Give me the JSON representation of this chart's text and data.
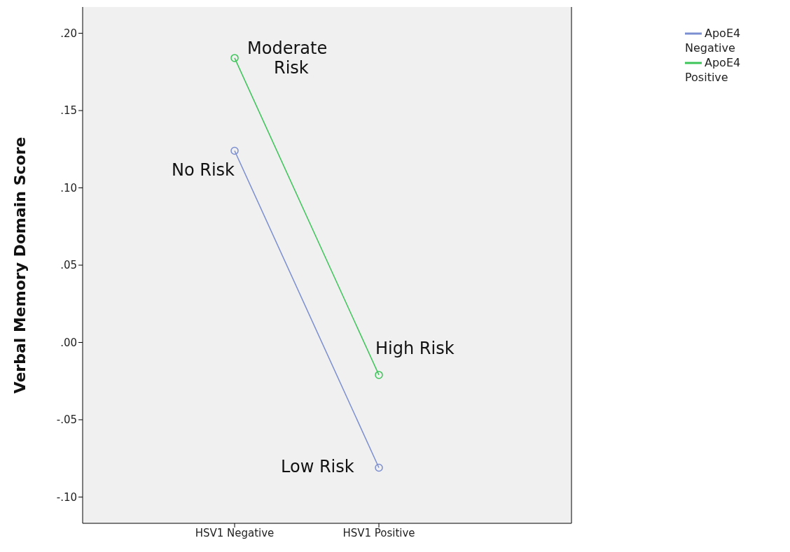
{
  "chart_data": {
    "type": "line",
    "ylabel": "Verbal Memory Domain Score",
    "categories": [
      "HSV1 Negative",
      "HSV1 Positive"
    ],
    "series": [
      {
        "name": "ApoE4 Negative",
        "color": "#7b8ed0",
        "values": [
          0.124,
          -0.081
        ]
      },
      {
        "name": "ApoE4 Positive",
        "color": "#3cc458",
        "values": [
          0.184,
          -0.021
        ]
      }
    ],
    "ylim": [
      -0.117,
      0.217
    ],
    "yticks": [
      {
        "value": -0.1,
        "label": "-.10"
      },
      {
        "value": -0.05,
        "label": "-.05"
      },
      {
        "value": 0,
        "label": ".00"
      },
      {
        "value": 0.05,
        "label": ".05"
      },
      {
        "value": 0.1,
        "label": ".10"
      },
      {
        "value": 0.15,
        "label": ".15"
      },
      {
        "value": 0.2,
        "label": ".20"
      }
    ],
    "annotations": [
      {
        "text": "Moderate\nRisk",
        "x": "HSV1 Negative",
        "y": 0.184
      },
      {
        "text": "No Risk",
        "x": "HSV1 Negative",
        "y": 0.124
      },
      {
        "text": "High Risk",
        "x": "HSV1 Positive",
        "y": -0.021
      },
      {
        "text": "Low Risk",
        "x": "HSV1 Positive",
        "y": -0.081
      }
    ],
    "marker": "circle",
    "line_style": "solid",
    "grid": false,
    "legend": "top right"
  }
}
